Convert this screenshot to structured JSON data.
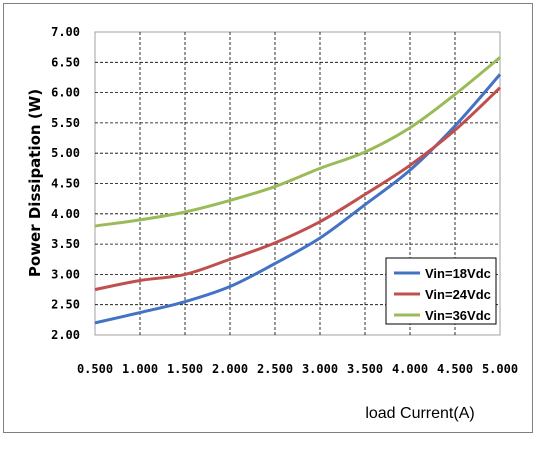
{
  "chart_data": {
    "type": "line",
    "xlabel": "load Current(A)",
    "ylabel": "Power Dissipation (W)",
    "xlim": [
      0.5,
      5.0
    ],
    "ylim": [
      2.0,
      7.0
    ],
    "x_tick_labels": [
      "0.500",
      "1.000",
      "1.500",
      "2.000",
      "2.500",
      "3.000",
      "3.500",
      "4.000",
      "4.500",
      "5.000"
    ],
    "y_tick_labels": [
      "2.00",
      "2.50",
      "3.00",
      "3.50",
      "4.00",
      "4.50",
      "5.00",
      "5.50",
      "6.00",
      "6.50",
      "7.00"
    ],
    "grid": true,
    "legend_position": "bottom-right",
    "x": [
      0.5,
      1.0,
      1.5,
      2.0,
      2.5,
      3.0,
      3.5,
      4.0,
      4.5,
      5.0
    ],
    "series": [
      {
        "name": "Vin=18Vdc",
        "color": "#4472c4",
        "values": [
          2.2,
          2.37,
          2.55,
          2.8,
          3.18,
          3.6,
          4.15,
          4.72,
          5.45,
          6.3
        ]
      },
      {
        "name": "Vin=24Vdc",
        "color": "#c0504d",
        "values": [
          2.75,
          2.9,
          3.0,
          3.25,
          3.52,
          3.87,
          4.32,
          4.8,
          5.38,
          6.08
        ]
      },
      {
        "name": "Vin=36Vdc",
        "color": "#9bbb59",
        "values": [
          3.8,
          3.9,
          4.03,
          4.22,
          4.45,
          4.75,
          5.02,
          5.42,
          5.97,
          6.58
        ]
      }
    ]
  }
}
